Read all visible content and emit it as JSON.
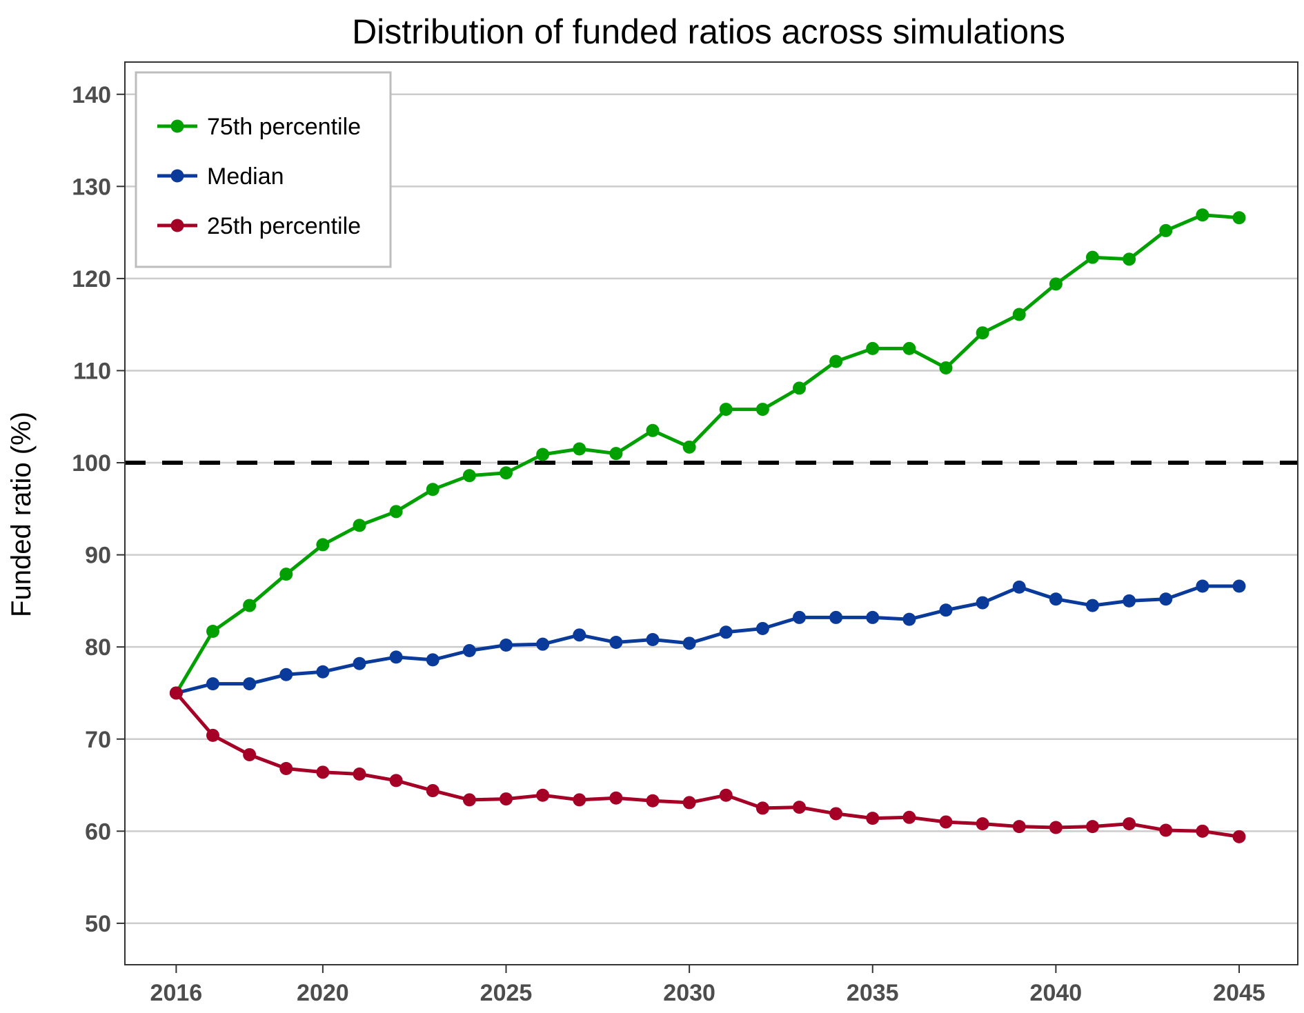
{
  "chart_data": {
    "type": "line",
    "title": "Distribution of funded ratios across simulations",
    "xlabel": "",
    "ylabel": "Funded ratio (%)",
    "xlim": [
      2014.6,
      2046.6
    ],
    "ylim": [
      45.5,
      143.5
    ],
    "x_ticks": [
      2016,
      2020,
      2025,
      2030,
      2035,
      2040,
      2045
    ],
    "y_ticks": [
      50,
      60,
      70,
      80,
      90,
      100,
      110,
      120,
      130,
      140
    ],
    "grid": "horizontal",
    "legend_position": "top-left",
    "reference_line": {
      "y": 100,
      "style": "dashed",
      "color": "#000000"
    },
    "x": [
      2016,
      2017,
      2018,
      2019,
      2020,
      2021,
      2022,
      2023,
      2024,
      2025,
      2026,
      2027,
      2028,
      2029,
      2030,
      2031,
      2032,
      2033,
      2034,
      2035,
      2036,
      2037,
      2038,
      2039,
      2040,
      2041,
      2042,
      2043,
      2044,
      2045
    ],
    "series": [
      {
        "name": "75th percentile",
        "color": "#00a000",
        "values": [
          75.0,
          81.7,
          84.5,
          87.9,
          91.1,
          93.2,
          94.7,
          97.1,
          98.6,
          98.9,
          100.9,
          101.5,
          101.0,
          103.5,
          101.7,
          105.8,
          105.8,
          108.1,
          111.0,
          112.4,
          112.4,
          110.3,
          114.1,
          116.1,
          119.4,
          122.3,
          122.1,
          125.2,
          126.9,
          126.6
        ]
      },
      {
        "name": "Median",
        "color": "#0a3a9a",
        "values": [
          75.0,
          76.0,
          76.0,
          77.0,
          77.3,
          78.2,
          78.9,
          78.6,
          79.6,
          80.2,
          80.3,
          81.3,
          80.5,
          80.8,
          80.4,
          81.6,
          82.0,
          83.2,
          83.2,
          83.2,
          83.0,
          84.0,
          84.8,
          86.5,
          85.2,
          84.5,
          85.0,
          85.2,
          86.6,
          86.6
        ]
      },
      {
        "name": "25th percentile",
        "color": "#a50026",
        "values": [
          75.0,
          70.4,
          68.3,
          66.8,
          66.4,
          66.2,
          65.5,
          64.4,
          63.4,
          63.5,
          63.9,
          63.4,
          63.6,
          63.3,
          63.1,
          63.9,
          62.5,
          62.6,
          61.9,
          61.4,
          61.5,
          61.0,
          60.8,
          60.5,
          60.4,
          60.5,
          60.8,
          60.1,
          60.0,
          59.4
        ]
      }
    ]
  }
}
